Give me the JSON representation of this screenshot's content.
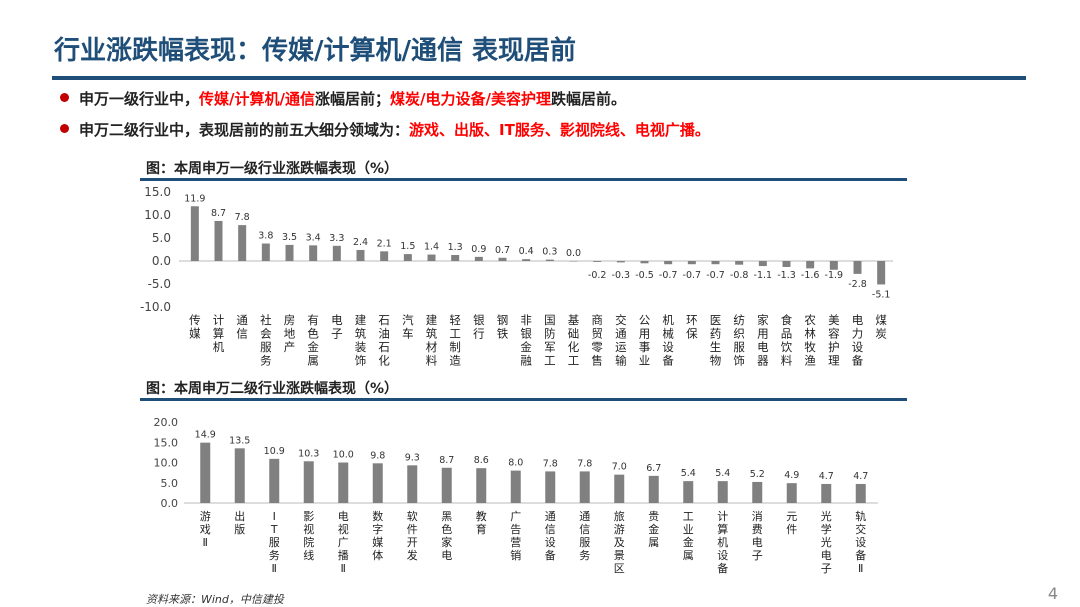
{
  "header": {
    "title": "行业涨跌幅表现：传媒/计算机/通信 表现居前"
  },
  "bullets": [
    {
      "prefix": "申万一级行业中，",
      "highlight": "传媒/计算机/通信",
      "mid": "涨幅居前；",
      "highlight2": "煤炭/电力设备/美容护理",
      "suffix": "跌幅居前。"
    },
    {
      "prefix": "申万二级行业中，表现居前的前五大细分领域为：",
      "highlight": "游戏、出版、IT服务、影视院线、电视广播。"
    }
  ],
  "figures": {
    "fig1_title": "图：本周申万一级行业涨跌幅表现（%）",
    "fig2_title": "图：本周申万二级行业涨跌幅表现（%）"
  },
  "footer": {
    "source": "资料来源：Wind，中信建投",
    "page": "4"
  },
  "colors": {
    "bar": "#808080",
    "accent": "#1f4e79",
    "highlight": "#ff0000"
  },
  "chart_data": [
    {
      "type": "bar",
      "title": "本周申万一级行业涨跌幅表现（%）",
      "categories": [
        "传媒",
        "计算机",
        "通信",
        "社会服务",
        "房地产",
        "有色金属",
        "电子",
        "建筑装饰",
        "石油石化",
        "汽车",
        "建筑材料",
        "轻工制造",
        "银行",
        "钢铁",
        "非银金融",
        "国防军工",
        "基础化工",
        "商贸零售",
        "交通运输",
        "公用事业",
        "机械设备",
        "环保",
        "医药生物",
        "纺织服饰",
        "家用电器",
        "食品饮料",
        "农林牧渔",
        "美容护理",
        "电力设备",
        "煤炭"
      ],
      "values": [
        11.9,
        8.7,
        7.8,
        3.8,
        3.5,
        3.4,
        3.3,
        2.4,
        2.1,
        1.5,
        1.4,
        1.3,
        0.9,
        0.7,
        0.4,
        0.3,
        0.0,
        -0.2,
        -0.3,
        -0.5,
        -0.7,
        -0.7,
        -0.7,
        -0.8,
        -1.1,
        -1.3,
        -1.6,
        -1.9,
        -2.8,
        -5.1
      ],
      "value_labels": [
        "11.9",
        "8.7",
        "7.8",
        "3.8",
        "3.5",
        "3.4",
        "3.3",
        "2.4",
        "2.1",
        "1.5",
        "1.4",
        "1.3",
        "0.9",
        "0.7",
        "0.4",
        "0.3",
        "0.0",
        "-0.2",
        "-0.3",
        "-0.5",
        "-0.7",
        "-0.7",
        "-0.7",
        "-0.8",
        "-1.1",
        "-1.3",
        "-1.6",
        "-1.9",
        "-2.8",
        "-5.1"
      ],
      "ylim": [
        -10,
        15
      ],
      "yticks": [
        "15.0",
        "10.0",
        "5.0",
        "0.0",
        "-5.0",
        "-10.0"
      ],
      "grid": false
    },
    {
      "type": "bar",
      "title": "本周申万二级行业涨跌幅表现（%）",
      "categories": [
        "游戏Ⅱ",
        "出版",
        "IT服务Ⅱ",
        "影视院线",
        "电视广播Ⅱ",
        "数字媒体",
        "软件开发",
        "黑色家电",
        "教育",
        "广告营销",
        "通信设备",
        "通信服务",
        "旅游及景区",
        "贵金属",
        "工业金属",
        "计算机设备",
        "消费电子",
        "元件",
        "光学光电子",
        "轨交设备Ⅱ"
      ],
      "values": [
        14.9,
        13.5,
        10.9,
        10.3,
        10.0,
        9.8,
        9.3,
        8.7,
        8.6,
        8.0,
        7.8,
        7.8,
        7.0,
        6.7,
        5.4,
        5.4,
        5.2,
        4.9,
        4.7,
        4.7
      ],
      "value_labels": [
        "14.9",
        "13.5",
        "10.9",
        "10.3",
        "10.0",
        "9.8",
        "9.3",
        "8.7",
        "8.6",
        "8.0",
        "7.8",
        "7.8",
        "7.0",
        "6.7",
        "5.4",
        "5.4",
        "5.2",
        "4.9",
        "4.7",
        "4.7"
      ],
      "ylim": [
        0,
        20
      ],
      "yticks": [
        "20.0",
        "15.0",
        "10.0",
        "5.0",
        "0.0"
      ],
      "grid": false
    }
  ]
}
